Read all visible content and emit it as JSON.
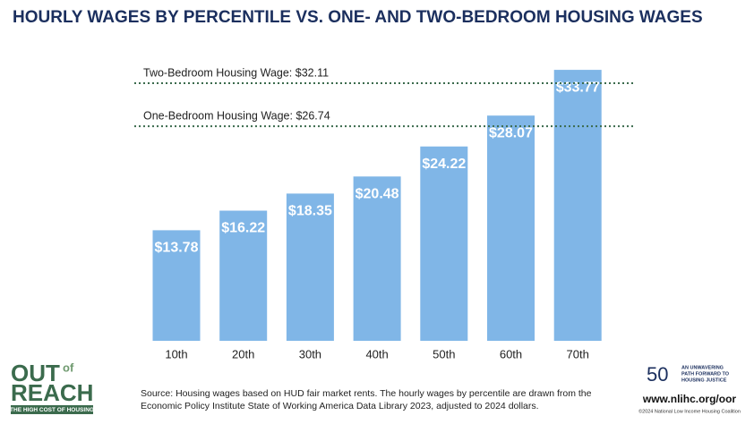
{
  "chart_data": {
    "type": "bar",
    "title": "HOURLY WAGES BY PERCENTILE VS. ONE- AND TWO-BEDROOM HOUSING WAGES",
    "categories": [
      "10th",
      "20th",
      "30th",
      "40th",
      "50th",
      "60th",
      "70th"
    ],
    "values": [
      13.78,
      16.22,
      18.35,
      20.48,
      24.22,
      28.07,
      33.77
    ],
    "value_labels": [
      "$13.78",
      "$16.22",
      "$18.35",
      "$20.48",
      "$24.22",
      "$28.07",
      "$33.77"
    ],
    "color": "#80b6e7",
    "reference_lines": [
      {
        "label": "Two-Bedroom Housing Wage: $32.11",
        "value": 32.11
      },
      {
        "label": "One-Bedroom Housing Wage: $26.74",
        "value": 26.74
      }
    ],
    "source": [
      "Source: Housing wages based on HUD fair market rents. The hourly wages by percentile are drawn from the",
      "Economic Policy Institute State of Working America Data Library 2023, adjusted to 2024 dollars."
    ]
  },
  "logo": {
    "out": "OUT",
    "of": "of",
    "reach": "REACH",
    "tagline": "THE HIGH COST OF HOUSING"
  },
  "badge": {
    "number": "50",
    "motto": [
      "AN UNWAVERING",
      "PATH FORWARD TO",
      "HOUSING JUSTICE"
    ],
    "url": "www.nlihc.org/oor",
    "copyright": "©2024 National Low Income Housing Coalition"
  }
}
